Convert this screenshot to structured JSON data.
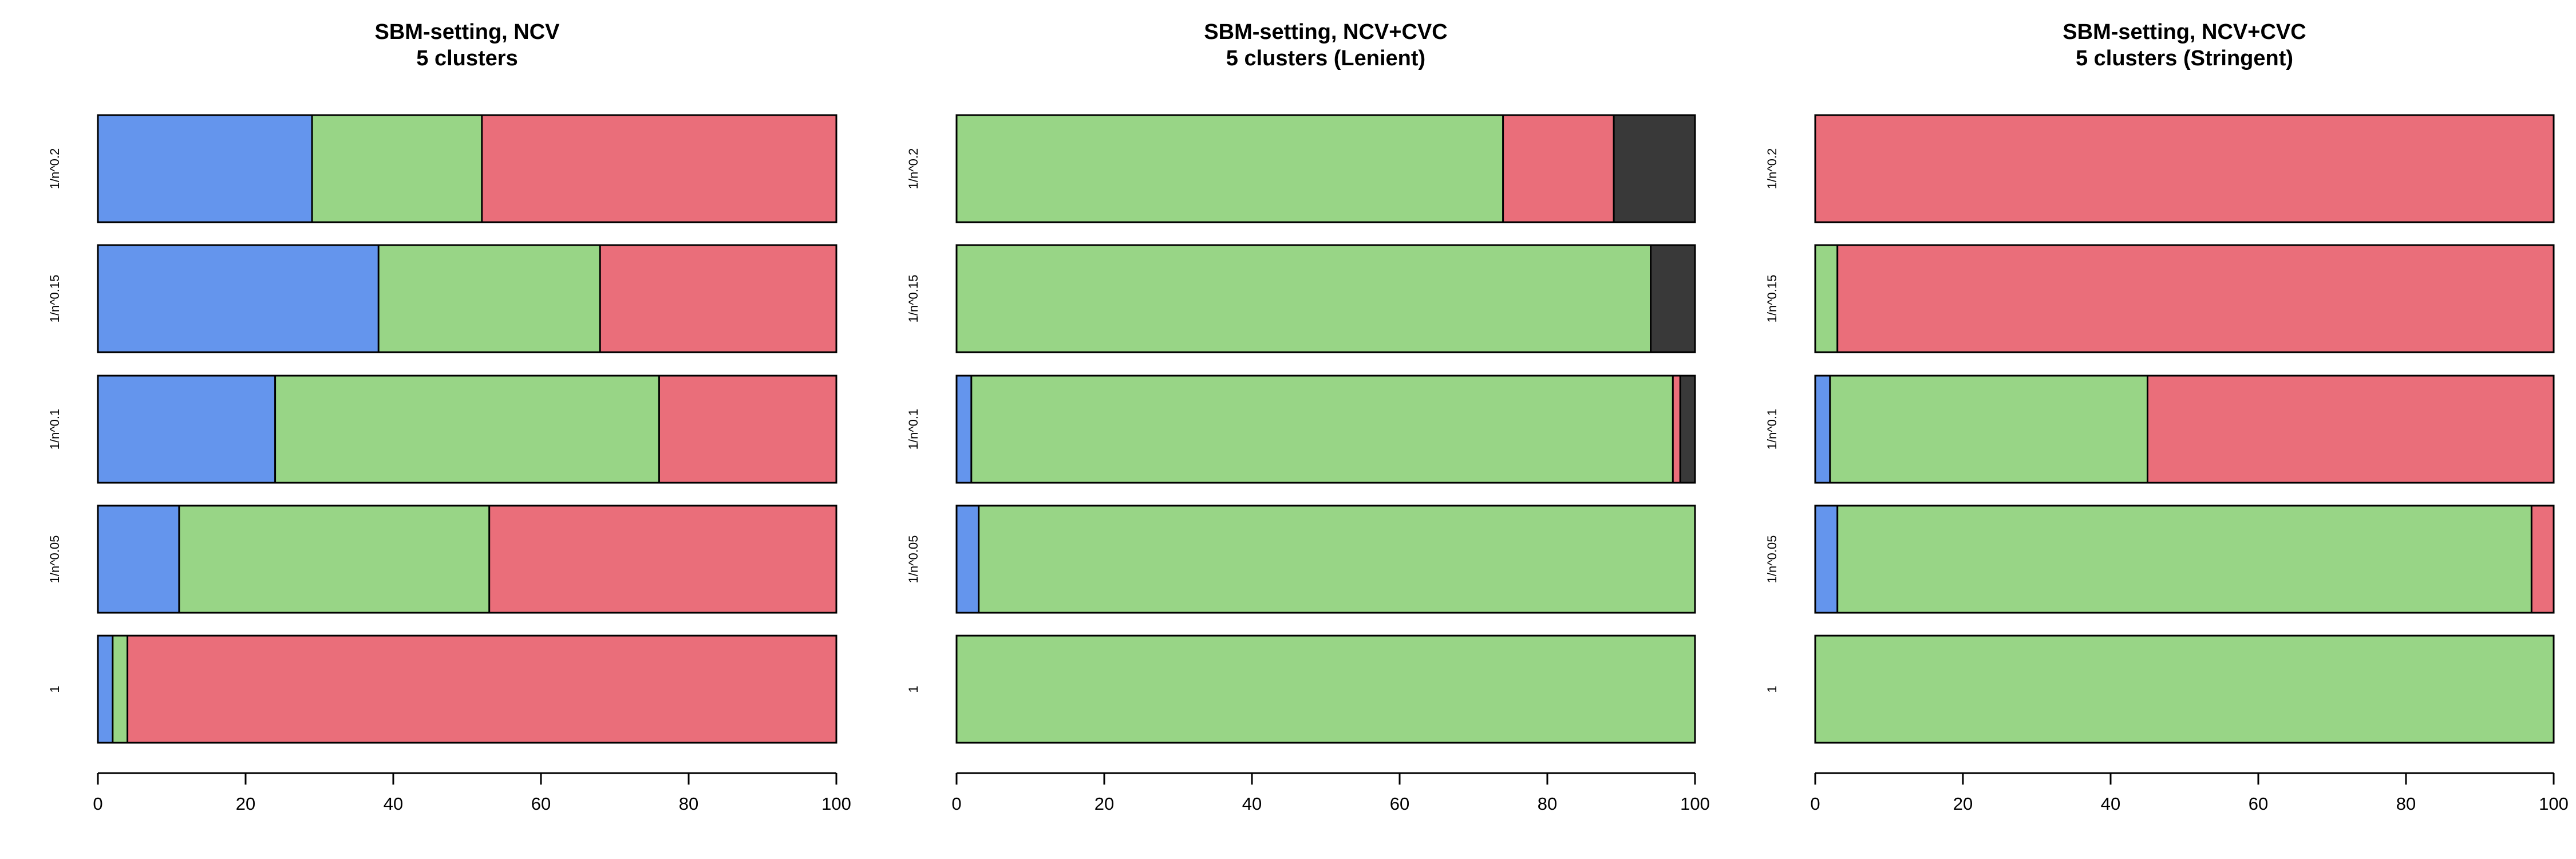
{
  "colors": {
    "blue": "#6495ED",
    "green": "#98D586",
    "red": "#EA6E7A",
    "dark": "#393939",
    "outline": "#000000"
  },
  "chart_data": [
    {
      "type": "bar",
      "orientation": "horizontal",
      "stacked": true,
      "title": "SBM-setting, NCV\n5 clusters",
      "xlim": [
        0,
        100
      ],
      "xticks": [
        0,
        20,
        40,
        60,
        80,
        100
      ],
      "categories": [
        "1/n^0.2",
        "1/n^0.15",
        "1/n^0.1",
        "1/n^0.05",
        "1"
      ],
      "segment_colors": [
        "blue",
        "green",
        "red",
        "dark"
      ],
      "segments": [
        [
          29,
          23,
          48,
          0
        ],
        [
          38,
          30,
          32,
          0
        ],
        [
          24,
          52,
          24,
          0
        ],
        [
          11,
          42,
          47,
          0
        ],
        [
          2,
          2,
          96,
          0
        ]
      ]
    },
    {
      "type": "bar",
      "orientation": "horizontal",
      "stacked": true,
      "title": "SBM-setting, NCV+CVC\n5 clusters (Lenient)",
      "xlim": [
        0,
        100
      ],
      "xticks": [
        0,
        20,
        40,
        60,
        80,
        100
      ],
      "categories": [
        "1/n^0.2",
        "1/n^0.15",
        "1/n^0.1",
        "1/n^0.05",
        "1"
      ],
      "segment_colors": [
        "blue",
        "green",
        "red",
        "dark"
      ],
      "segments": [
        [
          0,
          74,
          15,
          11
        ],
        [
          0,
          94,
          0,
          6
        ],
        [
          2,
          95,
          1,
          2
        ],
        [
          3,
          97,
          0,
          0
        ],
        [
          0,
          100,
          0,
          0
        ]
      ]
    },
    {
      "type": "bar",
      "orientation": "horizontal",
      "stacked": true,
      "title": "SBM-setting, NCV+CVC\n5 clusters (Stringent)",
      "xlim": [
        0,
        100
      ],
      "xticks": [
        0,
        20,
        40,
        60,
        80,
        100
      ],
      "categories": [
        "1/n^0.2",
        "1/n^0.15",
        "1/n^0.1",
        "1/n^0.05",
        "1"
      ],
      "segment_colors": [
        "blue",
        "green",
        "red",
        "dark"
      ],
      "segments": [
        [
          0,
          0,
          100,
          0
        ],
        [
          0,
          3,
          97,
          0
        ],
        [
          2,
          43,
          55,
          0
        ],
        [
          3,
          94,
          3,
          0
        ],
        [
          0,
          100,
          0,
          0
        ]
      ]
    }
  ]
}
